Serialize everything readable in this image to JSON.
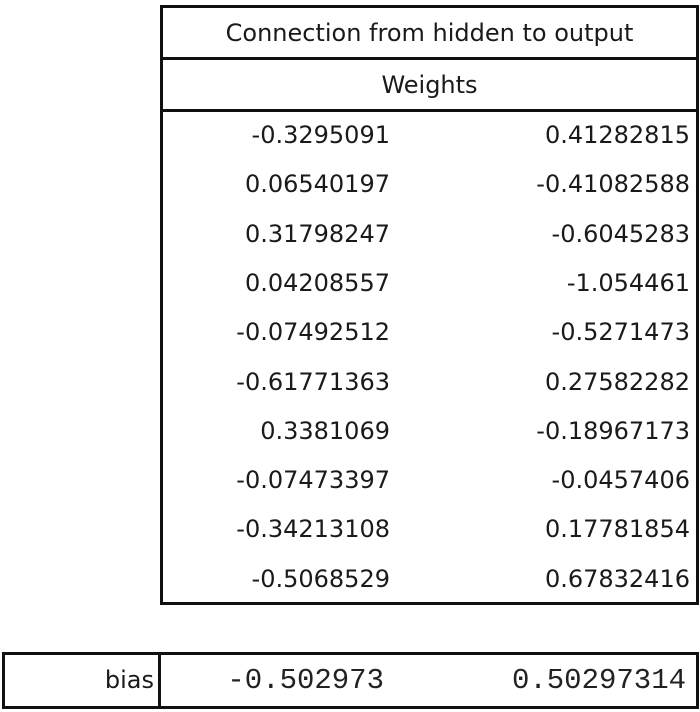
{
  "table": {
    "title": "Connection from hidden to output",
    "subtitle": "Weights",
    "rows": [
      [
        "-0.3295091",
        "0.41282815"
      ],
      [
        "0.06540197",
        "-0.41082588"
      ],
      [
        "0.31798247",
        "-0.6045283"
      ],
      [
        "0.04208557",
        "-1.054461"
      ],
      [
        "-0.07492512",
        "-0.5271473"
      ],
      [
        "-0.61771363",
        "0.27582282"
      ],
      [
        "0.3381069",
        "-0.18967173"
      ],
      [
        "-0.07473397",
        "-0.0457406"
      ],
      [
        "-0.34213108",
        "0.17781854"
      ],
      [
        "-0.5068529",
        "0.67832416"
      ]
    ]
  },
  "bias": {
    "label": "bias",
    "values": [
      "-0.502973",
      "0.50297314"
    ]
  }
}
